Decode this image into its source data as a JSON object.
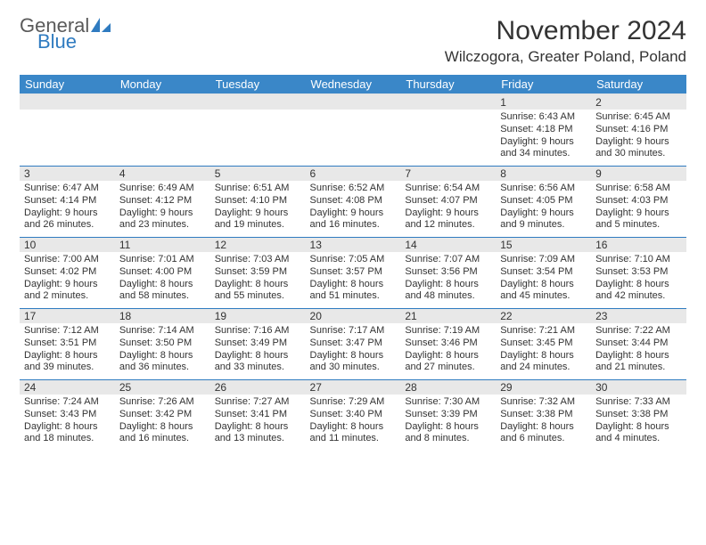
{
  "logo": {
    "text_general": "General",
    "text_blue": "Blue",
    "icon_fill": "#2f7bc0"
  },
  "header": {
    "month_title": "November 2024",
    "location": "Wilczogora, Greater Poland, Poland"
  },
  "colors": {
    "header_bg": "#3a87c8",
    "header_text": "#ffffff",
    "daynum_bg": "#e8e8e8",
    "row_border": "#2f7bc0",
    "text": "#333333",
    "logo_gray": "#5a5a5a",
    "logo_blue": "#2f7bc0"
  },
  "weekdays": [
    "Sunday",
    "Monday",
    "Tuesday",
    "Wednesday",
    "Thursday",
    "Friday",
    "Saturday"
  ],
  "weeks": [
    [
      {
        "num": "",
        "lines": [
          "",
          "",
          "",
          ""
        ]
      },
      {
        "num": "",
        "lines": [
          "",
          "",
          "",
          ""
        ]
      },
      {
        "num": "",
        "lines": [
          "",
          "",
          "",
          ""
        ]
      },
      {
        "num": "",
        "lines": [
          "",
          "",
          "",
          ""
        ]
      },
      {
        "num": "",
        "lines": [
          "",
          "",
          "",
          ""
        ]
      },
      {
        "num": "1",
        "lines": [
          "Sunrise: 6:43 AM",
          "Sunset: 4:18 PM",
          "Daylight: 9 hours",
          "and 34 minutes."
        ]
      },
      {
        "num": "2",
        "lines": [
          "Sunrise: 6:45 AM",
          "Sunset: 4:16 PM",
          "Daylight: 9 hours",
          "and 30 minutes."
        ]
      }
    ],
    [
      {
        "num": "3",
        "lines": [
          "Sunrise: 6:47 AM",
          "Sunset: 4:14 PM",
          "Daylight: 9 hours",
          "and 26 minutes."
        ]
      },
      {
        "num": "4",
        "lines": [
          "Sunrise: 6:49 AM",
          "Sunset: 4:12 PM",
          "Daylight: 9 hours",
          "and 23 minutes."
        ]
      },
      {
        "num": "5",
        "lines": [
          "Sunrise: 6:51 AM",
          "Sunset: 4:10 PM",
          "Daylight: 9 hours",
          "and 19 minutes."
        ]
      },
      {
        "num": "6",
        "lines": [
          "Sunrise: 6:52 AM",
          "Sunset: 4:08 PM",
          "Daylight: 9 hours",
          "and 16 minutes."
        ]
      },
      {
        "num": "7",
        "lines": [
          "Sunrise: 6:54 AM",
          "Sunset: 4:07 PM",
          "Daylight: 9 hours",
          "and 12 minutes."
        ]
      },
      {
        "num": "8",
        "lines": [
          "Sunrise: 6:56 AM",
          "Sunset: 4:05 PM",
          "Daylight: 9 hours",
          "and 9 minutes."
        ]
      },
      {
        "num": "9",
        "lines": [
          "Sunrise: 6:58 AM",
          "Sunset: 4:03 PM",
          "Daylight: 9 hours",
          "and 5 minutes."
        ]
      }
    ],
    [
      {
        "num": "10",
        "lines": [
          "Sunrise: 7:00 AM",
          "Sunset: 4:02 PM",
          "Daylight: 9 hours",
          "and 2 minutes."
        ]
      },
      {
        "num": "11",
        "lines": [
          "Sunrise: 7:01 AM",
          "Sunset: 4:00 PM",
          "Daylight: 8 hours",
          "and 58 minutes."
        ]
      },
      {
        "num": "12",
        "lines": [
          "Sunrise: 7:03 AM",
          "Sunset: 3:59 PM",
          "Daylight: 8 hours",
          "and 55 minutes."
        ]
      },
      {
        "num": "13",
        "lines": [
          "Sunrise: 7:05 AM",
          "Sunset: 3:57 PM",
          "Daylight: 8 hours",
          "and 51 minutes."
        ]
      },
      {
        "num": "14",
        "lines": [
          "Sunrise: 7:07 AM",
          "Sunset: 3:56 PM",
          "Daylight: 8 hours",
          "and 48 minutes."
        ]
      },
      {
        "num": "15",
        "lines": [
          "Sunrise: 7:09 AM",
          "Sunset: 3:54 PM",
          "Daylight: 8 hours",
          "and 45 minutes."
        ]
      },
      {
        "num": "16",
        "lines": [
          "Sunrise: 7:10 AM",
          "Sunset: 3:53 PM",
          "Daylight: 8 hours",
          "and 42 minutes."
        ]
      }
    ],
    [
      {
        "num": "17",
        "lines": [
          "Sunrise: 7:12 AM",
          "Sunset: 3:51 PM",
          "Daylight: 8 hours",
          "and 39 minutes."
        ]
      },
      {
        "num": "18",
        "lines": [
          "Sunrise: 7:14 AM",
          "Sunset: 3:50 PM",
          "Daylight: 8 hours",
          "and 36 minutes."
        ]
      },
      {
        "num": "19",
        "lines": [
          "Sunrise: 7:16 AM",
          "Sunset: 3:49 PM",
          "Daylight: 8 hours",
          "and 33 minutes."
        ]
      },
      {
        "num": "20",
        "lines": [
          "Sunrise: 7:17 AM",
          "Sunset: 3:47 PM",
          "Daylight: 8 hours",
          "and 30 minutes."
        ]
      },
      {
        "num": "21",
        "lines": [
          "Sunrise: 7:19 AM",
          "Sunset: 3:46 PM",
          "Daylight: 8 hours",
          "and 27 minutes."
        ]
      },
      {
        "num": "22",
        "lines": [
          "Sunrise: 7:21 AM",
          "Sunset: 3:45 PM",
          "Daylight: 8 hours",
          "and 24 minutes."
        ]
      },
      {
        "num": "23",
        "lines": [
          "Sunrise: 7:22 AM",
          "Sunset: 3:44 PM",
          "Daylight: 8 hours",
          "and 21 minutes."
        ]
      }
    ],
    [
      {
        "num": "24",
        "lines": [
          "Sunrise: 7:24 AM",
          "Sunset: 3:43 PM",
          "Daylight: 8 hours",
          "and 18 minutes."
        ]
      },
      {
        "num": "25",
        "lines": [
          "Sunrise: 7:26 AM",
          "Sunset: 3:42 PM",
          "Daylight: 8 hours",
          "and 16 minutes."
        ]
      },
      {
        "num": "26",
        "lines": [
          "Sunrise: 7:27 AM",
          "Sunset: 3:41 PM",
          "Daylight: 8 hours",
          "and 13 minutes."
        ]
      },
      {
        "num": "27",
        "lines": [
          "Sunrise: 7:29 AM",
          "Sunset: 3:40 PM",
          "Daylight: 8 hours",
          "and 11 minutes."
        ]
      },
      {
        "num": "28",
        "lines": [
          "Sunrise: 7:30 AM",
          "Sunset: 3:39 PM",
          "Daylight: 8 hours",
          "and 8 minutes."
        ]
      },
      {
        "num": "29",
        "lines": [
          "Sunrise: 7:32 AM",
          "Sunset: 3:38 PM",
          "Daylight: 8 hours",
          "and 6 minutes."
        ]
      },
      {
        "num": "30",
        "lines": [
          "Sunrise: 7:33 AM",
          "Sunset: 3:38 PM",
          "Daylight: 8 hours",
          "and 4 minutes."
        ]
      }
    ]
  ]
}
